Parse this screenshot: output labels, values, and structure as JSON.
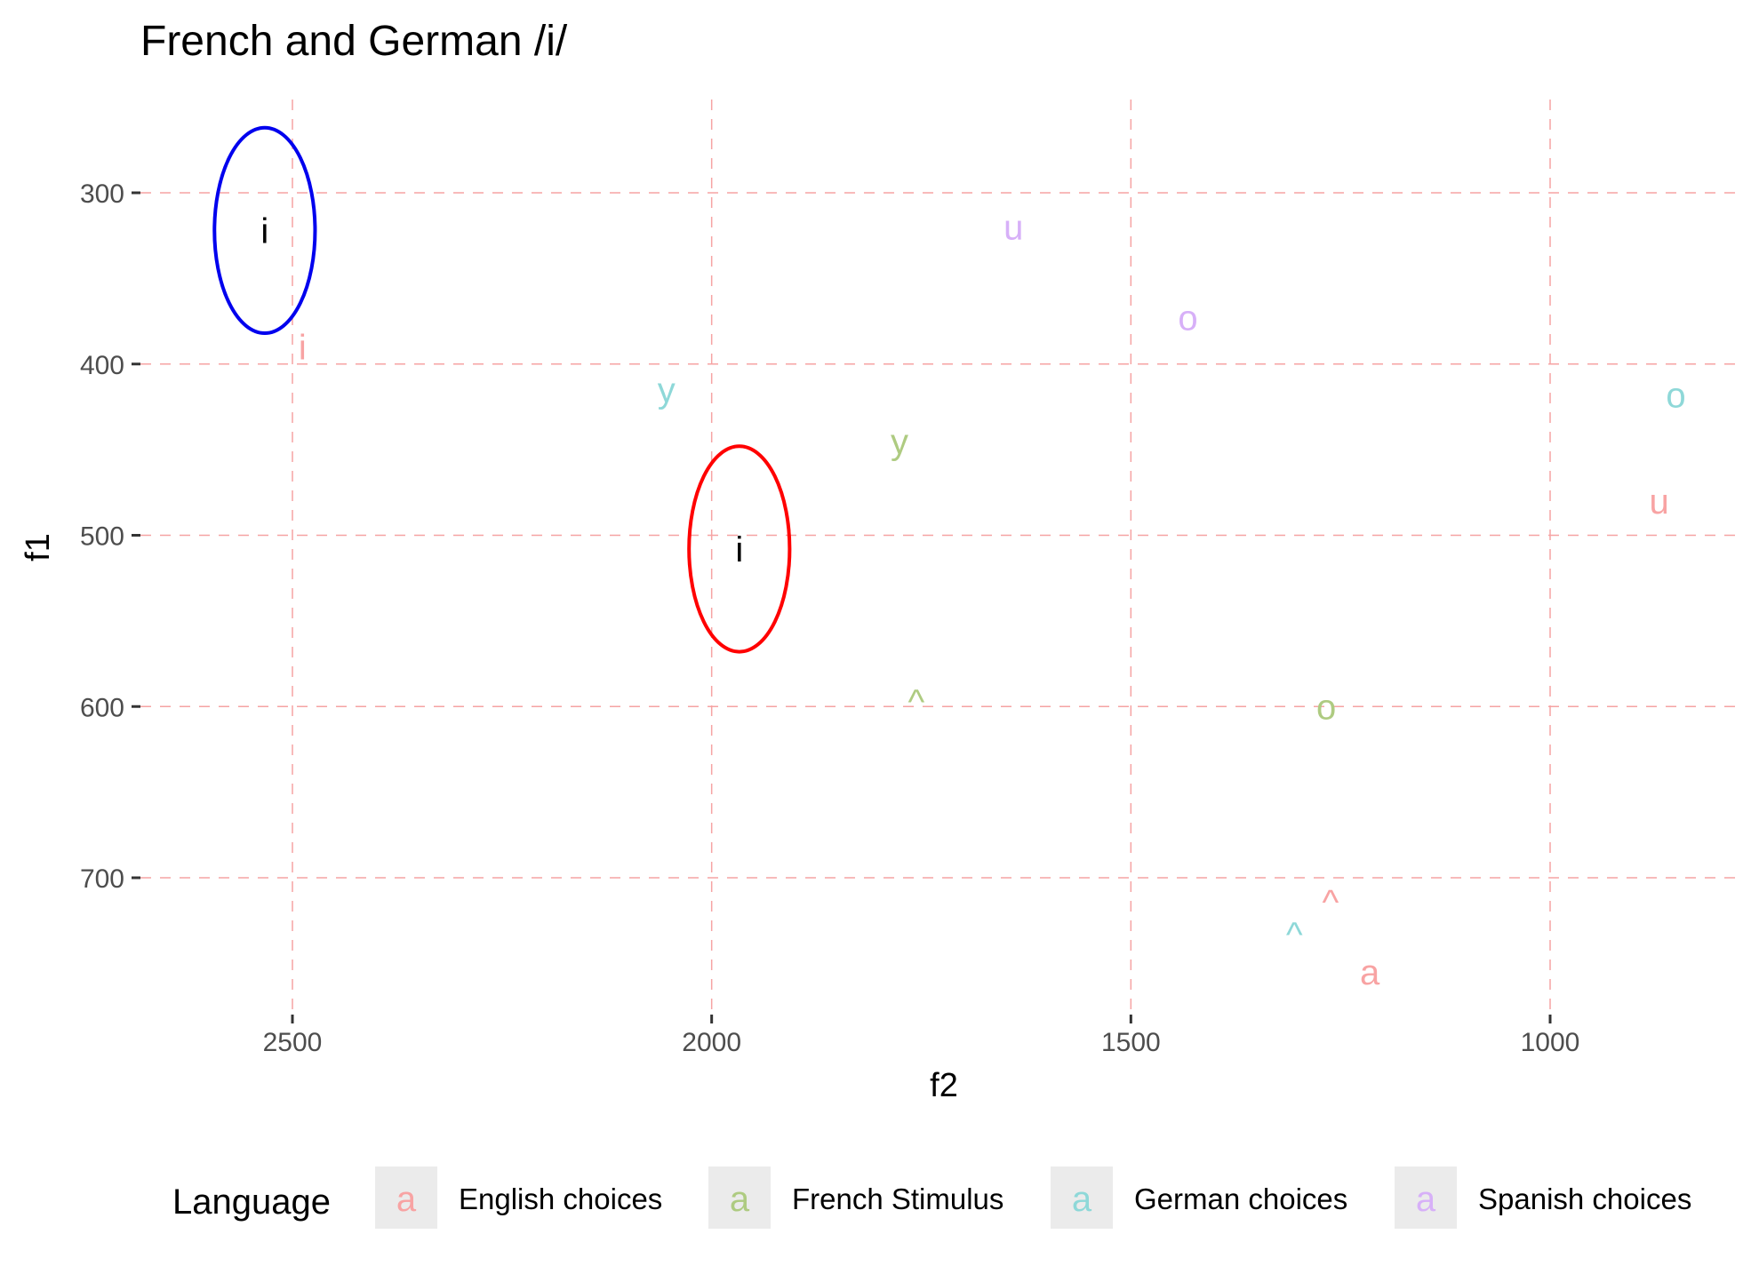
{
  "chart_data": {
    "type": "scatter",
    "title": "French and German /i/",
    "xlabel": "f2",
    "ylabel": "f1",
    "x_reversed": true,
    "y_reversed": true,
    "xlim": [
      2690,
      780
    ],
    "ylim": [
      262,
      768
    ],
    "x_ticks": [
      2500,
      2000,
      1500,
      1000
    ],
    "y_ticks": [
      300,
      400,
      500,
      600,
      700
    ],
    "grid": true,
    "legend": {
      "title": "Language",
      "position": "bottom",
      "key_glyph": "a",
      "entries": [
        {
          "name": "English choices",
          "color": "#F8A3A3"
        },
        {
          "name": "French Stimulus",
          "color": "#AECB81"
        },
        {
          "name": "German choices",
          "color": "#8ED8D8"
        },
        {
          "name": "Spanish choices",
          "color": "#D7B0F8"
        }
      ]
    },
    "series": [
      {
        "name": "English choices",
        "color": "#F8A3A3",
        "points": [
          {
            "label": "i",
            "x": 2488,
            "y": 390
          },
          {
            "label": "u",
            "x": 870,
            "y": 480
          },
          {
            "label": "^",
            "x": 1262,
            "y": 714
          },
          {
            "label": "a",
            "x": 1215,
            "y": 755
          }
        ]
      },
      {
        "name": "French Stimulus",
        "color": "#AECB81",
        "points": [
          {
            "label": "y",
            "x": 1776,
            "y": 445
          },
          {
            "label": "^",
            "x": 1756,
            "y": 597
          },
          {
            "label": "o",
            "x": 1267,
            "y": 600
          }
        ]
      },
      {
        "name": "German choices",
        "color": "#8ED8D8",
        "points": [
          {
            "label": "y",
            "x": 2054,
            "y": 415
          },
          {
            "label": "o",
            "x": 850,
            "y": 418
          },
          {
            "label": "^",
            "x": 1305,
            "y": 733
          }
        ]
      },
      {
        "name": "Spanish choices",
        "color": "#D7B0F8",
        "points": [
          {
            "label": "u",
            "x": 1640,
            "y": 320
          },
          {
            "label": "o",
            "x": 1432,
            "y": 373
          }
        ]
      }
    ],
    "annotations": [
      {
        "label": "i",
        "x": 2533,
        "y": 322,
        "ellipse_color": "#0000EE",
        "rx_units": 60,
        "ry_units": 60
      },
      {
        "label": "i",
        "x": 1967,
        "y": 508,
        "ellipse_color": "#FF0000",
        "rx_units": 60,
        "ry_units": 60
      }
    ]
  }
}
